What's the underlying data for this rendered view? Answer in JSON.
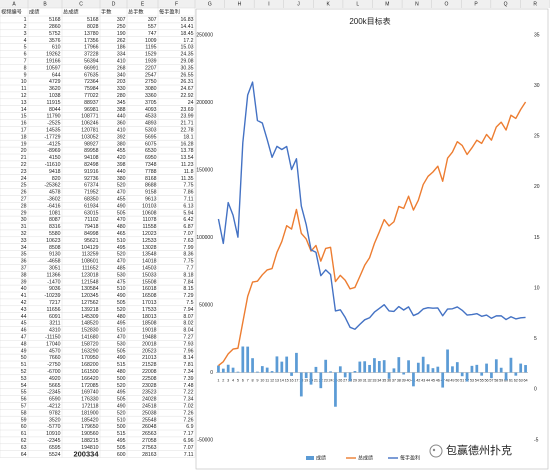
{
  "sheet": {
    "column_letters": [
      "A",
      "B",
      "C",
      "D",
      "E",
      "F",
      "G",
      "H",
      "I",
      "J",
      "K",
      "L",
      "M",
      "N",
      "O",
      "P",
      "Q",
      "R"
    ],
    "header": [
      "视频编号",
      "成绩",
      "总成绩",
      "手数",
      "总手数",
      "每手盈利"
    ],
    "rows": [
      [
        1,
        5168,
        5168,
        307,
        307,
        16.83
      ],
      [
        2,
        2860,
        8028,
        250,
        557,
        14.41
      ],
      [
        3,
        5752,
        13780,
        190,
        747,
        18.45
      ],
      [
        4,
        3576,
        17356,
        262,
        1009,
        17.2
      ],
      [
        5,
        610,
        17966,
        186,
        1195,
        15.03
      ],
      [
        6,
        19262,
        37228,
        334,
        1529,
        24.35
      ],
      [
        7,
        19166,
        56394,
        410,
        1939,
        29.08
      ],
      [
        8,
        10597,
        66991,
        268,
        2207,
        30.35
      ],
      [
        9,
        644,
        67635,
        340,
        2547,
        26.55
      ],
      [
        10,
        4729,
        72364,
        203,
        2750,
        26.31
      ],
      [
        11,
        3620,
        75984,
        330,
        3080,
        24.67
      ],
      [
        12,
        1038,
        77022,
        280,
        3360,
        22.92
      ],
      [
        13,
        11915,
        88937,
        345,
        3705,
        24
      ],
      [
        14,
        8044,
        96981,
        388,
        4093,
        23.69
      ],
      [
        15,
        11790,
        108771,
        440,
        4533,
        23.99
      ],
      [
        16,
        -2525,
        106246,
        360,
        4893,
        21.71
      ],
      [
        17,
        14535,
        120781,
        410,
        5303,
        22.78
      ],
      [
        18,
        -17729,
        103052,
        392,
        5695,
        18.1
      ],
      [
        19,
        -4125,
        98927,
        380,
        6075,
        16.28
      ],
      [
        20,
        -8969,
        89958,
        455,
        6530,
        13.78
      ],
      [
        21,
        4150,
        94108,
        420,
        6950,
        13.54
      ],
      [
        22,
        -11610,
        82498,
        398,
        7348,
        11.23
      ],
      [
        23,
        9418,
        91916,
        440,
        7788,
        11.8
      ],
      [
        24,
        820,
        92736,
        380,
        8168,
        11.35
      ],
      [
        25,
        -25362,
        67374,
        520,
        8688,
        7.75
      ],
      [
        26,
        4578,
        71952,
        470,
        9158,
        7.86
      ],
      [
        27,
        -3602,
        68350,
        455,
        9613,
        7.11
      ],
      [
        28,
        -6416,
        61934,
        490,
        10103,
        6.13
      ],
      [
        29,
        1081,
        63015,
        505,
        10608,
        5.94
      ],
      [
        30,
        8087,
        71102,
        470,
        11078,
        6.42
      ],
      [
        31,
        8316,
        79418,
        480,
        11558,
        6.87
      ],
      [
        32,
        5580,
        84998,
        465,
        12023,
        7.07
      ],
      [
        33,
        10623,
        95621,
        510,
        12533,
        7.63
      ],
      [
        34,
        8508,
        104129,
        495,
        13028,
        7.99
      ],
      [
        35,
        9130,
        113259,
        520,
        13548,
        8.36
      ],
      [
        36,
        -4658,
        108601,
        470,
        14018,
        7.75
      ],
      [
        37,
        3051,
        111652,
        485,
        14503,
        7.7
      ],
      [
        38,
        11366,
        123018,
        530,
        15033,
        8.18
      ],
      [
        39,
        -1470,
        121548,
        475,
        15508,
        7.84
      ],
      [
        40,
        9036,
        130584,
        510,
        16018,
        8.15
      ],
      [
        41,
        -10239,
        120345,
        490,
        16508,
        7.29
      ],
      [
        42,
        7217,
        127562,
        505,
        17013,
        7.5
      ],
      [
        43,
        11656,
        139218,
        520,
        17533,
        7.94
      ],
      [
        44,
        6091,
        145309,
        480,
        18013,
        8.07
      ],
      [
        45,
        3211,
        148520,
        495,
        18508,
        8.02
      ],
      [
        46,
        4310,
        152830,
        510,
        19018,
        8.04
      ],
      [
        47,
        -11150,
        141680,
        470,
        19488,
        7.27
      ],
      [
        48,
        17040,
        158720,
        530,
        20018,
        7.93
      ],
      [
        49,
        4570,
        163290,
        505,
        20523,
        7.96
      ],
      [
        50,
        7660,
        170950,
        490,
        21013,
        8.14
      ],
      [
        51,
        -2750,
        168200,
        515,
        21528,
        7.81
      ],
      [
        52,
        -6700,
        161500,
        480,
        22008,
        7.34
      ],
      [
        53,
        4920,
        166420,
        500,
        22508,
        7.39
      ],
      [
        54,
        5665,
        172085,
        520,
        23028,
        7.48
      ],
      [
        55,
        -2345,
        169740,
        495,
        23523,
        7.22
      ],
      [
        56,
        6590,
        176330,
        505,
        24028,
        7.34
      ],
      [
        57,
        -4212,
        172118,
        490,
        24518,
        7.02
      ],
      [
        58,
        9782,
        181900,
        520,
        25038,
        7.26
      ],
      [
        59,
        3520,
        185420,
        510,
        25548,
        7.26
      ],
      [
        60,
        -5770,
        179650,
        500,
        26048,
        6.9
      ],
      [
        61,
        10910,
        190560,
        515,
        26563,
        7.17
      ],
      [
        62,
        -2345,
        188215,
        495,
        27058,
        6.96
      ],
      [
        63,
        6595,
        194810,
        505,
        27563,
        7.07
      ],
      [
        64,
        5524,
        200334,
        600,
        28163,
        7.11
      ]
    ]
  },
  "chart_data": {
    "type": "bar",
    "title": "200k目标表",
    "categories": [
      1,
      2,
      3,
      4,
      5,
      6,
      7,
      8,
      9,
      10,
      11,
      12,
      13,
      14,
      15,
      16,
      17,
      18,
      19,
      20,
      21,
      22,
      23,
      24,
      25,
      26,
      27,
      28,
      29,
      30,
      31,
      32,
      33,
      34,
      35,
      36,
      37,
      38,
      39,
      40,
      41,
      42,
      43,
      44,
      45,
      46,
      47,
      48,
      49,
      50,
      51,
      52,
      53,
      54,
      55,
      56,
      57,
      58,
      59,
      60,
      61,
      62,
      63,
      64
    ],
    "series": [
      {
        "name": "成绩",
        "type": "bar",
        "color": "#5b9bd5",
        "values": [
          5168,
          2860,
          5752,
          3576,
          610,
          19262,
          19166,
          10597,
          644,
          4729,
          3620,
          1038,
          11915,
          8044,
          11790,
          -2525,
          14535,
          -17729,
          -4125,
          -8969,
          4150,
          -11610,
          9418,
          820,
          -25362,
          4578,
          -3602,
          -6416,
          1081,
          8087,
          8316,
          5580,
          10623,
          8508,
          9130,
          -4658,
          3051,
          11366,
          -1470,
          9036,
          -10239,
          7217,
          11656,
          6091,
          3211,
          4310,
          -11150,
          17040,
          4570,
          7660,
          -2750,
          -6700,
          4920,
          5665,
          -2345,
          6590,
          -4212,
          9782,
          3520,
          -5770,
          10910,
          -2345,
          6595,
          5524
        ]
      },
      {
        "name": "总成绩",
        "type": "line",
        "color": "#ed7d31",
        "values": [
          5168,
          8028,
          13780,
          17356,
          17966,
          37228,
          56394,
          66991,
          67635,
          72364,
          75984,
          77022,
          88937,
          96981,
          108771,
          106246,
          120781,
          103052,
          98927,
          89958,
          94108,
          82498,
          91916,
          92736,
          67374,
          71952,
          68350,
          61934,
          63015,
          71102,
          79418,
          84998,
          95621,
          104129,
          113259,
          108601,
          111652,
          123018,
          121548,
          130584,
          120345,
          127562,
          139218,
          145309,
          148520,
          152830,
          141680,
          158720,
          163290,
          170950,
          168200,
          161500,
          166420,
          172085,
          169740,
          176330,
          172118,
          181900,
          185420,
          179650,
          190560,
          188215,
          194810,
          200334
        ]
      },
      {
        "name": "每手盈利",
        "type": "line",
        "axis": "y2",
        "color": "#4472c4",
        "values": [
          16.83,
          14.41,
          18.45,
          17.2,
          15.03,
          24.35,
          29.08,
          30.35,
          26.55,
          26.31,
          24.67,
          22.92,
          24,
          23.69,
          23.99,
          21.71,
          22.78,
          18.1,
          16.28,
          13.78,
          13.54,
          11.23,
          11.8,
          11.35,
          7.75,
          7.86,
          7.11,
          6.13,
          5.94,
          6.42,
          6.87,
          7.07,
          7.63,
          7.99,
          8.36,
          7.75,
          7.7,
          8.18,
          7.84,
          8.15,
          7.29,
          7.5,
          7.94,
          8.07,
          8.02,
          8.04,
          7.27,
          7.93,
          7.96,
          8.14,
          7.81,
          7.34,
          7.39,
          7.48,
          7.22,
          7.34,
          7.02,
          7.26,
          7.26,
          6.9,
          7.17,
          6.96,
          7.07,
          7.11
        ]
      }
    ],
    "ylim": [
      -50000,
      250000
    ],
    "yticks": [
      -50000,
      0,
      50000,
      100000,
      150000,
      200000,
      250000
    ],
    "y2lim": [
      -5,
      35
    ],
    "y2ticks": [
      -5,
      0,
      5,
      10,
      15,
      20,
      25,
      30,
      35
    ],
    "grid": false,
    "legend": "bottom"
  },
  "watermark": "包赢德州扑克"
}
